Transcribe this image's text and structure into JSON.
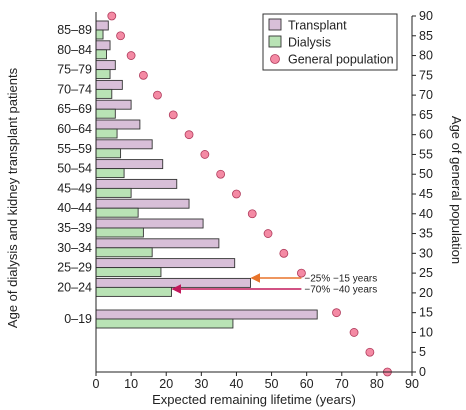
{
  "chart_data": {
    "type": "bar",
    "orientation": "horizontal",
    "xlabel": "Expected remaining lifetime (years)",
    "ylabel": "Age of dialysis and kidney transplant patients",
    "y2label": "Age of general population",
    "xlim": [
      0,
      90
    ],
    "xticks": [
      0,
      10,
      20,
      30,
      40,
      50,
      60,
      70,
      80,
      90
    ],
    "y2lim": [
      0,
      90
    ],
    "y2ticks": [
      0,
      5,
      10,
      15,
      20,
      25,
      30,
      35,
      40,
      45,
      50,
      55,
      60,
      65,
      70,
      75,
      80,
      85,
      90
    ],
    "categories": [
      "85–89",
      "80–84",
      "75–79",
      "70–74",
      "65–69",
      "60–64",
      "55–59",
      "50–54",
      "45–49",
      "40–44",
      "35–39",
      "30–34",
      "25–29",
      "20–24",
      "0–19"
    ],
    "series": [
      {
        "name": "Transplant",
        "color": "#d8bfd8",
        "values": [
          3.5,
          4,
          5.5,
          7.5,
          10,
          12.5,
          16,
          19,
          23,
          26.5,
          30.5,
          35,
          39.5,
          44,
          63
        ]
      },
      {
        "name": "Dialysis",
        "color": "#b9e3b5",
        "values": [
          2,
          3,
          4,
          4.5,
          5.5,
          6,
          7,
          8,
          10,
          12,
          13.5,
          16,
          18.5,
          21.5,
          39
        ]
      }
    ],
    "general_population": {
      "name": "General population",
      "color": "#f48aa4",
      "points": [
        {
          "x": 4.5,
          "age": 90
        },
        {
          "x": 7,
          "age": 85
        },
        {
          "x": 10,
          "age": 80
        },
        {
          "x": 13.5,
          "age": 75
        },
        {
          "x": 17.5,
          "age": 70
        },
        {
          "x": 22,
          "age": 65
        },
        {
          "x": 26.5,
          "age": 60
        },
        {
          "x": 31,
          "age": 55
        },
        {
          "x": 35.5,
          "age": 50
        },
        {
          "x": 40,
          "age": 45
        },
        {
          "x": 44.5,
          "age": 40
        },
        {
          "x": 49,
          "age": 35
        },
        {
          "x": 53.5,
          "age": 30
        },
        {
          "x": 58.5,
          "age": 25
        },
        {
          "x": 68.5,
          "age": 15
        },
        {
          "x": 73.5,
          "age": 10
        },
        {
          "x": 78,
          "age": 5
        },
        {
          "x": 83,
          "age": 0
        }
      ]
    },
    "annotations": [
      {
        "text": "−25% −15 years",
        "color": "#e8742a",
        "from_x": 58.5,
        "to_x": 44
      },
      {
        "text": "−70% −40 years",
        "color": "#c2185b",
        "from_x": 58.5,
        "to_x": 21.5
      }
    ],
    "legend": {
      "position": "top-right",
      "entries": [
        "Transplant",
        "Dialysis",
        "General population"
      ]
    }
  }
}
